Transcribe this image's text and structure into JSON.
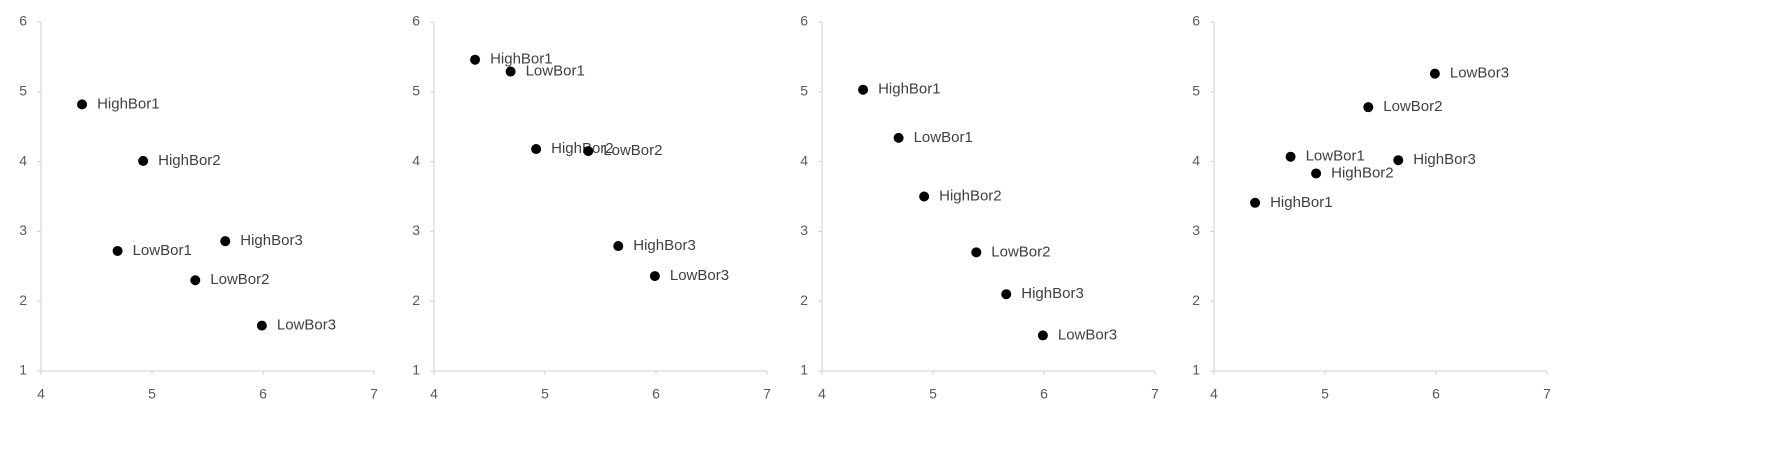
{
  "chart_data": [
    {
      "type": "scatter",
      "color": "#000000",
      "xlim": [
        4,
        7
      ],
      "ylim": [
        1,
        6
      ],
      "xticks": [
        4,
        5,
        6,
        7
      ],
      "yticks": [
        1,
        2,
        3,
        4,
        5,
        6
      ],
      "labels": [
        "HighBor1",
        "LowBor1",
        "HighBor2",
        "LowBor2",
        "HighBor3",
        "LowBor3"
      ],
      "x": [
        4.37,
        4.69,
        4.92,
        5.39,
        5.66,
        5.99
      ],
      "y": [
        4.82,
        2.72,
        4.01,
        2.3,
        2.86,
        1.65
      ]
    },
    {
      "type": "scatter",
      "color": "#000000",
      "xlim": [
        4,
        7
      ],
      "ylim": [
        1,
        6
      ],
      "xticks": [
        4,
        5,
        6,
        7
      ],
      "yticks": [
        1,
        2,
        3,
        4,
        5,
        6
      ],
      "labels": [
        "HighBor1",
        "LowBor1",
        "HighBor2",
        "LowBor2",
        "HighBor3",
        "LowBor3"
      ],
      "x": [
        4.37,
        4.69,
        4.92,
        5.39,
        5.66,
        5.99
      ],
      "y": [
        5.46,
        5.29,
        4.18,
        4.15,
        2.79,
        2.36
      ]
    },
    {
      "type": "scatter",
      "color": "#000000",
      "xlim": [
        4,
        7
      ],
      "ylim": [
        1,
        6
      ],
      "xticks": [
        4,
        5,
        6,
        7
      ],
      "yticks": [
        1,
        2,
        3,
        4,
        5,
        6
      ],
      "labels": [
        "HighBor1",
        "LowBor1",
        "HighBor2",
        "LowBor2",
        "HighBor3",
        "LowBor3"
      ],
      "x": [
        4.37,
        4.69,
        4.92,
        5.39,
        5.66,
        5.99
      ],
      "y": [
        5.03,
        4.34,
        3.5,
        2.7,
        2.1,
        1.51
      ]
    },
    {
      "type": "scatter",
      "color": "#000000",
      "xlim": [
        4,
        7
      ],
      "ylim": [
        1,
        6
      ],
      "xticks": [
        4,
        5,
        6,
        7
      ],
      "yticks": [
        1,
        2,
        3,
        4,
        5,
        6
      ],
      "labels": [
        "HighBor1",
        "LowBor1",
        "HighBor2",
        "LowBor2",
        "HighBor3",
        "LowBor3"
      ],
      "x": [
        4.37,
        4.69,
        4.92,
        5.39,
        5.66,
        5.99
      ],
      "y": [
        3.41,
        4.07,
        3.83,
        4.78,
        4.02,
        5.26
      ]
    }
  ]
}
